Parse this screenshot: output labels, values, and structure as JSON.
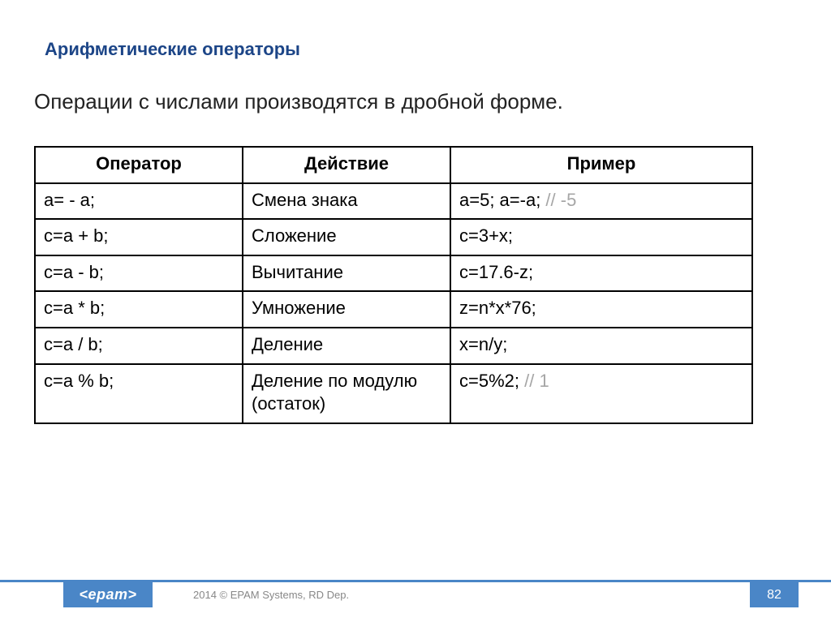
{
  "title": "Арифметические операторы",
  "subtitle": "Операции с числами производятся в дробной форме.",
  "table": {
    "headers": [
      "Оператор",
      "Действие",
      "Пример"
    ],
    "rows": [
      {
        "op": "a= - a;",
        "act": "Смена знака",
        "ex": "a=5; a=-a; ",
        "comment": "// -5"
      },
      {
        "op": "c=a + b;",
        "act": "Сложение",
        "ex": "c=3+x;",
        "comment": ""
      },
      {
        "op": "c=a - b;",
        "act": "Вычитание",
        "ex": "c=17.6-z;",
        "comment": ""
      },
      {
        "op": "c=a * b;",
        "act": "Умножение",
        "ex": "z=n*x*76;",
        "comment": ""
      },
      {
        "op": "c=a / b;",
        "act": "Деление",
        "ex": "x=n/y;",
        "comment": ""
      },
      {
        "op": "c=a % b;",
        "act": "Деление по модулю (остаток)",
        "ex": "c=5%2; ",
        "comment": "// 1"
      }
    ]
  },
  "footer": {
    "logo": "<epam>",
    "text": "2014 © EPAM Systems, RD Dep.",
    "page": "82"
  },
  "colors": {
    "title": "#1c4587",
    "accent": "#4a86c7",
    "comment": "#a6a6a6"
  }
}
